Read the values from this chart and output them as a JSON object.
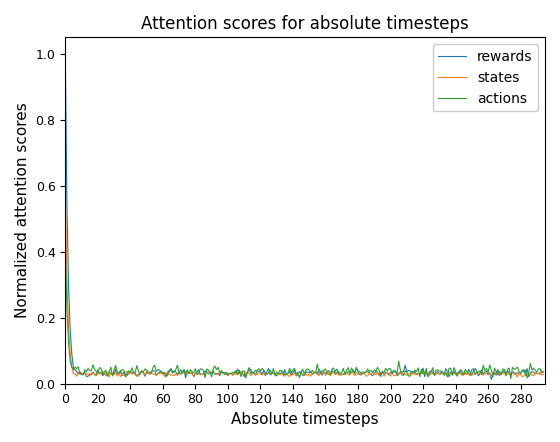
{
  "title": "Attention scores for absolute timesteps",
  "xlabel": "Absolute timesteps",
  "ylabel": "Normalized attention scores",
  "xlim": [
    0,
    295
  ],
  "ylim": [
    0.0,
    1.05
  ],
  "xticks": [
    0,
    20,
    40,
    60,
    80,
    100,
    120,
    140,
    160,
    180,
    200,
    220,
    240,
    260,
    280
  ],
  "yticks": [
    0.0,
    0.2,
    0.4,
    0.6,
    0.8,
    1.0
  ],
  "legend_labels": [
    "rewards",
    "states",
    "actions"
  ],
  "line_colors": [
    "#1f77b4",
    "#ff7f0e",
    "#2ca02c"
  ],
  "n_points": 295,
  "flat_level_rewards": 0.033,
  "flat_level_states": 0.03,
  "flat_level_actions": 0.038,
  "noise_rewards": 0.006,
  "noise_states": 0.004,
  "noise_actions": 0.009
}
